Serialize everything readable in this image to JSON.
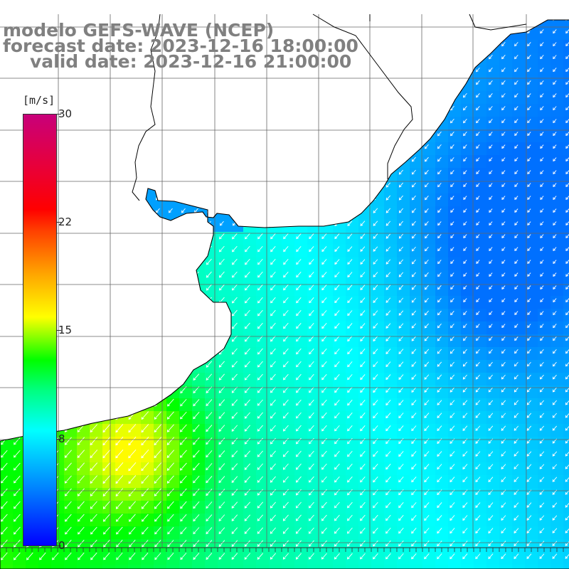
{
  "header": {
    "line1": "modelo GEFS-WAVE (NCEP)",
    "line2": "forecast date: 2023-12-16 18:00:00",
    "line3": "valid date: 2023-12-16 21:00:00"
  },
  "colorbar": {
    "unit": "[m/s]",
    "ticks": [
      "30",
      "22",
      "15",
      "8",
      "0"
    ],
    "colors": [
      "#0000ff",
      "#0080ff",
      "#00ffff",
      "#00ff80",
      "#00ff00",
      "#80ff00",
      "#ffff00",
      "#ffa500",
      "#ff0000",
      "#c8007a"
    ]
  },
  "map": {
    "grid": true,
    "land_color": "#ffffff",
    "coastline_color": "#000000",
    "arrow_color": "#ffffff",
    "dominant_wind": "north-east to south-west"
  }
}
